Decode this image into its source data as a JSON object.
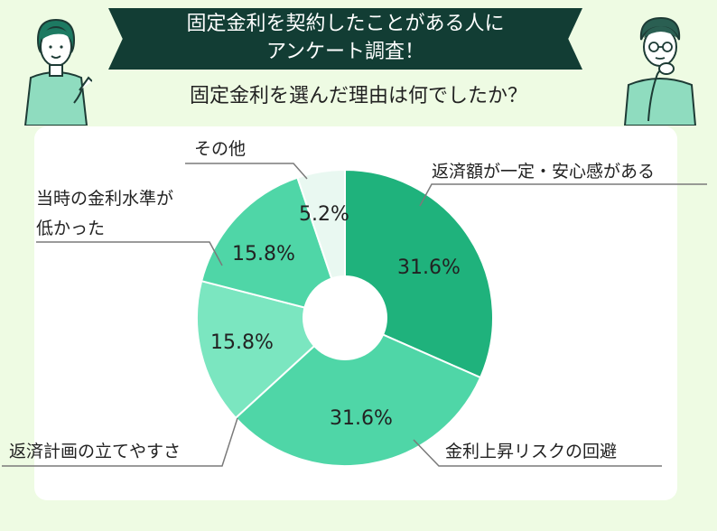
{
  "header": {
    "title_line1": "固定金利を契約したことがある人に",
    "title_line2": "アンケート調査！",
    "question": "固定金利を選んだ理由は何でしたか？"
  },
  "chart_data": {
    "type": "pie",
    "title": "固定金利を選んだ理由は何でしたか？",
    "slices": [
      {
        "label": "返済額が一定・安心感がある",
        "value": 31.6,
        "value_text": "31.6%",
        "color": "#1fb27c"
      },
      {
        "label": "金利上昇リスクの回避",
        "value": 31.6,
        "value_text": "31.6%",
        "color": "#4fd6a7"
      },
      {
        "label": "返済計画の立てやすさ",
        "value": 15.8,
        "value_text": "15.8%",
        "color": "#7be6c0"
      },
      {
        "label": "当時の金利水準が低かった",
        "value": 15.8,
        "value_text": "15.8%",
        "color": "#4fd6a7"
      },
      {
        "label": "その他",
        "value": 5.2,
        "value_text": "5.2%",
        "color": "#e9f8f1"
      }
    ],
    "label_lines": [
      "返済額が一定・安心感がある",
      "金利上昇リスクの回避",
      "返済計画の立てやすさ",
      "当時の金利水準が",
      "低かった",
      "その他"
    ]
  }
}
